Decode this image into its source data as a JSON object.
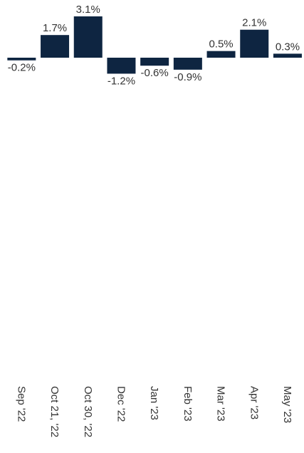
{
  "chart_data": {
    "type": "bar",
    "categories": [
      "Sep '22",
      "Oct 21, '22",
      "Oct 30, '22",
      "Dec '22",
      "Jan '23",
      "Feb '23",
      "Mar '23",
      "Apr '23",
      "May '23"
    ],
    "values": [
      -0.2,
      1.7,
      3.1,
      -1.2,
      -0.6,
      -0.9,
      0.5,
      2.1,
      0.3
    ],
    "value_labels": [
      "-0.2%",
      "1.7%",
      "3.1%",
      "-1.2%",
      "-0.6%",
      "-0.9%",
      "0.5%",
      "2.1%",
      "0.3%"
    ],
    "color": "#0e2541"
  }
}
